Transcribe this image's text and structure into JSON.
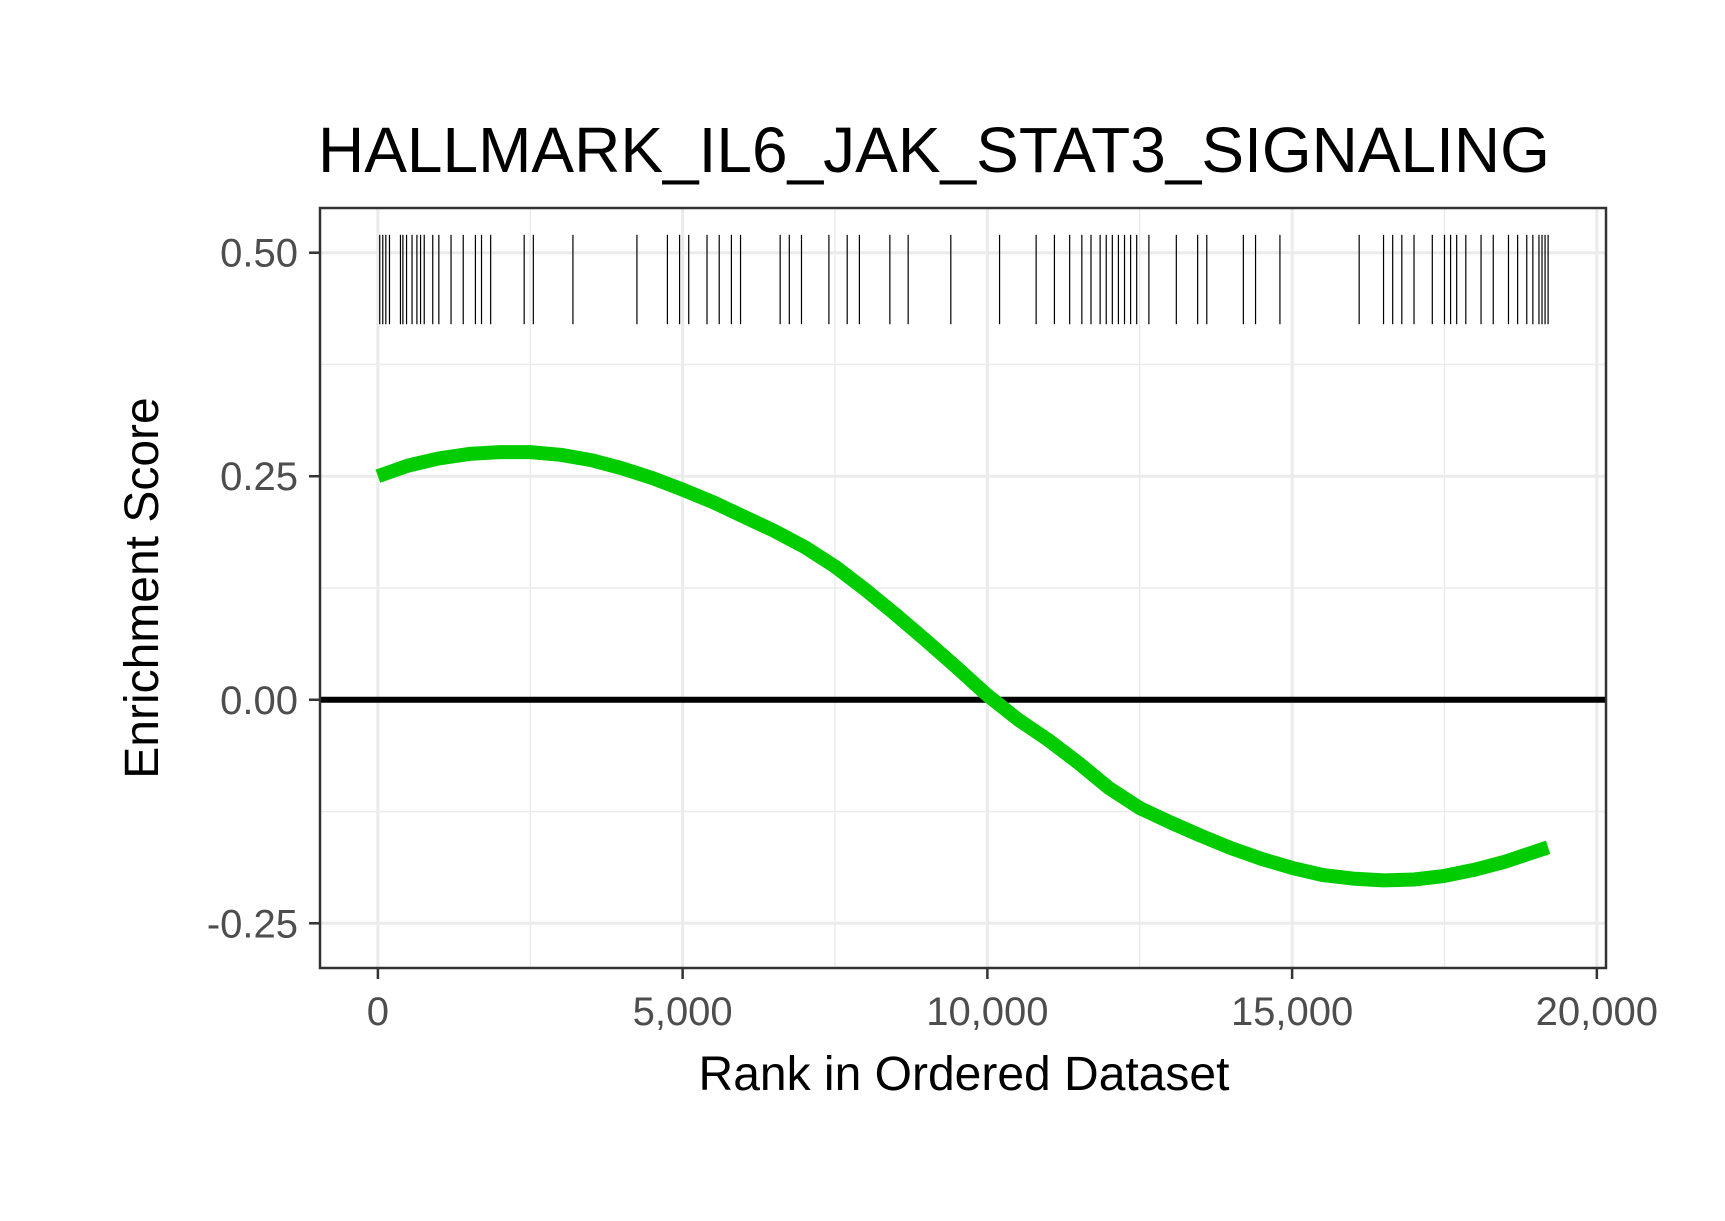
{
  "chart_data": {
    "type": "line",
    "title": "HALLMARK_IL6_JAK_STAT3_SIGNALING",
    "xlabel": "Rank in Ordered Dataset",
    "ylabel": "Enrichment Score",
    "xlim": [
      -950,
      20150
    ],
    "ylim": [
      -0.3,
      0.55
    ],
    "x_ticks": [
      0,
      5000,
      10000,
      15000,
      20000
    ],
    "x_tick_labels": [
      "0",
      "5,000",
      "10,000",
      "15,000",
      "20,000"
    ],
    "y_ticks": [
      0.5,
      0.25,
      0.0,
      -0.25
    ],
    "y_tick_labels": [
      "0.50",
      "0.25",
      "0.00",
      "-0.25"
    ],
    "grid": true,
    "legend": "none",
    "reference_line": {
      "y": 0,
      "color": "#000000"
    },
    "series": [
      {
        "color": "#00cc00",
        "x": [
          0,
          500,
          1000,
          1500,
          2000,
          2500,
          3000,
          3500,
          4000,
          4500,
          5000,
          5500,
          6000,
          6500,
          7000,
          7500,
          8000,
          8500,
          9000,
          9500,
          10000,
          10500,
          11000,
          11500,
          12000,
          12500,
          13000,
          13500,
          14000,
          14500,
          15000,
          15500,
          16000,
          16500,
          17000,
          17500,
          18000,
          18500,
          19200
        ],
        "y": [
          0.25,
          0.262,
          0.27,
          0.275,
          0.277,
          0.277,
          0.274,
          0.268,
          0.259,
          0.248,
          0.235,
          0.221,
          0.205,
          0.189,
          0.171,
          0.149,
          0.123,
          0.095,
          0.066,
          0.036,
          0.005,
          -0.022,
          -0.045,
          -0.071,
          -0.099,
          -0.121,
          -0.137,
          -0.152,
          -0.166,
          -0.178,
          -0.188,
          -0.196,
          -0.2,
          -0.202,
          -0.201,
          -0.197,
          -0.19,
          -0.181,
          -0.165
        ]
      }
    ],
    "gene_hits": {
      "color": "#000000",
      "y_range": [
        0.42,
        0.52
      ],
      "positions": [
        30,
        80,
        130,
        190,
        370,
        410,
        470,
        560,
        640,
        700,
        760,
        900,
        1000,
        1200,
        1400,
        1600,
        1700,
        1850,
        2400,
        2550,
        3200,
        4250,
        4750,
        4950,
        5100,
        5400,
        5600,
        5800,
        5950,
        6600,
        6750,
        6950,
        7400,
        7700,
        7900,
        8400,
        8700,
        9400,
        10200,
        10800,
        11100,
        11350,
        11550,
        11700,
        11850,
        11950,
        12050,
        12150,
        12250,
        12350,
        12450,
        12650,
        13100,
        13450,
        13600,
        14200,
        14400,
        14800,
        16100,
        16500,
        16650,
        16800,
        17000,
        17300,
        17500,
        17600,
        17700,
        17850,
        18100,
        18300,
        18550,
        18700,
        18850,
        18950,
        19050,
        19100,
        19150,
        19200
      ]
    }
  }
}
